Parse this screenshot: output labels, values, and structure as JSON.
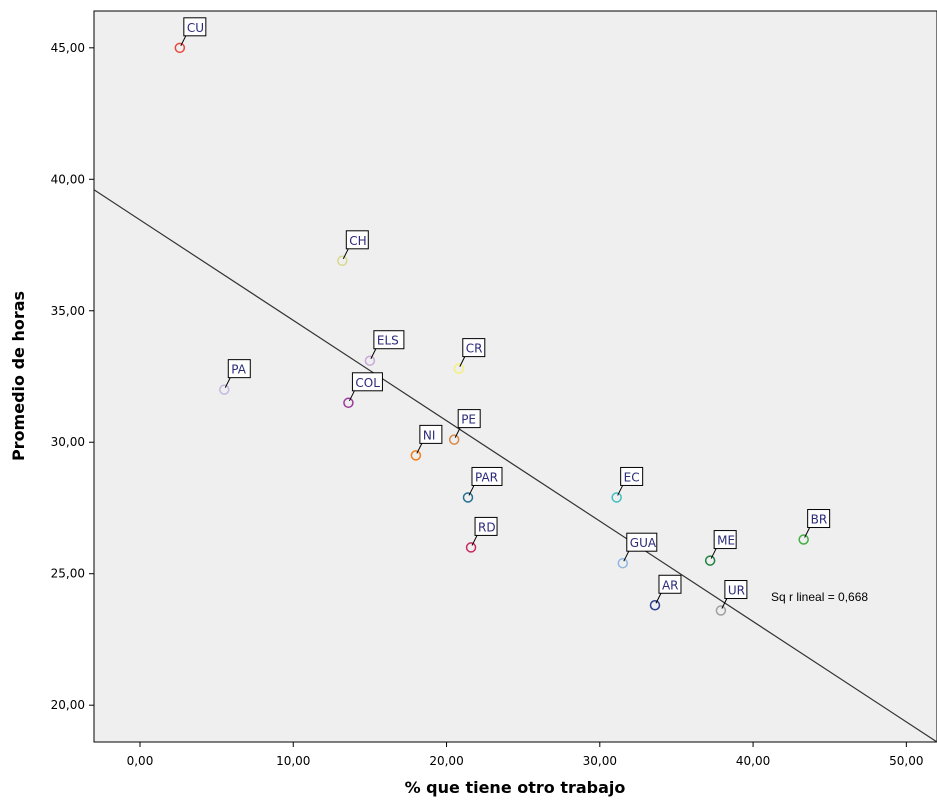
{
  "chart_data": {
    "type": "scatter",
    "xlabel": "% que tiene otro trabajo",
    "ylabel": "Promedio de horas",
    "xlim": [
      -3,
      52
    ],
    "ylim": [
      18.6,
      46.4
    ],
    "xticks": [
      0,
      10,
      20,
      30,
      40,
      50
    ],
    "xtick_labels": [
      "0,00",
      "10,00",
      "20,00",
      "30,00",
      "40,00",
      "50,00"
    ],
    "yticks": [
      20,
      25,
      30,
      35,
      40,
      45
    ],
    "ytick_labels": [
      "20,00",
      "25,00",
      "30,00",
      "35,00",
      "40,00",
      "45,00"
    ],
    "grid": false,
    "background": "#efefef",
    "points": [
      {
        "label": "CU",
        "x": 2.6,
        "y": 45.0,
        "color": "#e8453c"
      },
      {
        "label": "CH",
        "x": 13.2,
        "y": 36.9,
        "color": "#d8d890"
      },
      {
        "label": "ELS",
        "x": 15.0,
        "y": 33.1,
        "color": "#c8a8d8"
      },
      {
        "label": "CR",
        "x": 20.8,
        "y": 32.8,
        "color": "#f4f07a"
      },
      {
        "label": "PA",
        "x": 5.5,
        "y": 32.0,
        "color": "#c8b8e0"
      },
      {
        "label": "COL",
        "x": 13.6,
        "y": 31.5,
        "color": "#9a3a9a"
      },
      {
        "label": "PE",
        "x": 20.5,
        "y": 30.1,
        "color": "#d88a4a"
      },
      {
        "label": "NI",
        "x": 18.0,
        "y": 29.5,
        "color": "#f07f1f"
      },
      {
        "label": "PAR",
        "x": 21.4,
        "y": 27.9,
        "color": "#1f6f8f"
      },
      {
        "label": "EC",
        "x": 31.1,
        "y": 27.9,
        "color": "#3fbfbf"
      },
      {
        "label": "RD",
        "x": 21.6,
        "y": 26.0,
        "color": "#c82860"
      },
      {
        "label": "GUA",
        "x": 31.5,
        "y": 25.4,
        "color": "#8fb8e0"
      },
      {
        "label": "ME",
        "x": 37.2,
        "y": 25.5,
        "color": "#1f7f3f"
      },
      {
        "label": "BR",
        "x": 43.3,
        "y": 26.3,
        "color": "#3faf3f"
      },
      {
        "label": "AR",
        "x": 33.6,
        "y": 23.8,
        "color": "#2f3f8f"
      },
      {
        "label": "UR",
        "x": 37.9,
        "y": 23.6,
        "color": "#9f9f9f"
      }
    ],
    "fit_line": {
      "x": [
        -3,
        52
      ],
      "y": [
        39.6,
        18.6
      ]
    },
    "annotation": "Sq r lineal = 0,668"
  }
}
